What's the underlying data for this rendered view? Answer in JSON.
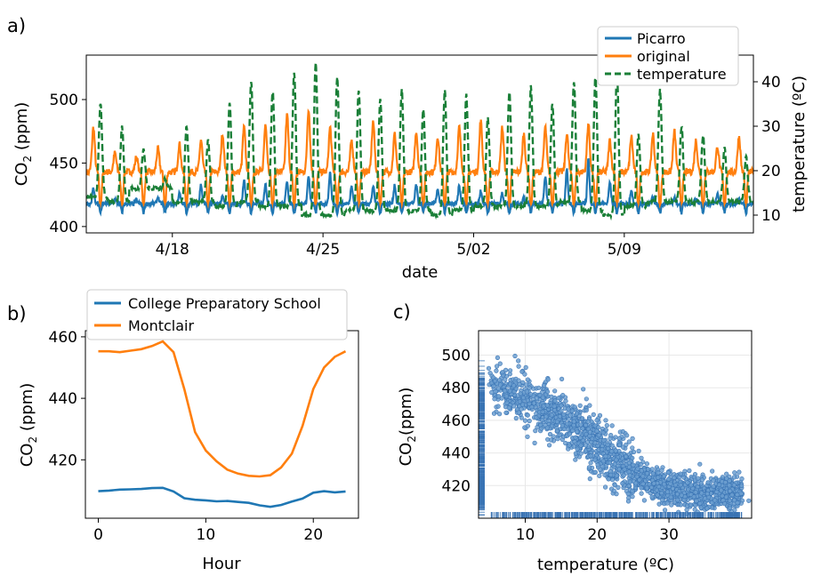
{
  "panels": {
    "a": {
      "label": "a)"
    },
    "b": {
      "label": "b)"
    },
    "c": {
      "label": "c)"
    }
  },
  "colors": {
    "picarro": "#1f77b4",
    "original": "#ff7f0e",
    "temperature": "#1a7f37",
    "scatter_fill": "#6c9fd0",
    "scatter_edge": "#3a74b4"
  },
  "chart_data": [
    {
      "type": "line",
      "panel": "a",
      "xlabel": "date",
      "ylabel_prefix": "CO",
      "ylabel_sub": "2",
      "ylabel_suffix": " (ppm)",
      "y2label": "temperature (ºC)",
      "x_range_days": [
        "4/14",
        "5/15"
      ],
      "x_ticks": [
        "4/18",
        "4/25",
        "5/02",
        "5/09"
      ],
      "ylim": [
        395,
        535
      ],
      "yticks": [
        400,
        450,
        500
      ],
      "y2lim": [
        6,
        46
      ],
      "y2ticks": [
        10,
        20,
        30,
        40
      ],
      "legend_position": "top-right",
      "series": [
        {
          "name": "Picarro",
          "axis": "left",
          "style": "solid",
          "baseline": 418,
          "peak_amplitudes": [
            12,
            4,
            3,
            5,
            8,
            15,
            5,
            18,
            15,
            18,
            22,
            24,
            15,
            14,
            15,
            15,
            12,
            14,
            10,
            8,
            5,
            22,
            27,
            35,
            17,
            10,
            5,
            5,
            4,
            8,
            5
          ],
          "range": [
            408,
            476
          ]
        },
        {
          "name": "original",
          "axis": "left",
          "style": "solid",
          "baseline": 443,
          "peak_amplitudes": [
            35,
            15,
            12,
            18,
            22,
            25,
            30,
            35,
            38,
            45,
            50,
            35,
            25,
            40,
            30,
            32,
            28,
            35,
            40,
            35,
            30,
            35,
            30,
            38,
            25,
            28,
            30,
            32,
            25,
            20,
            28
          ],
          "trough": 412,
          "range": [
            407,
            496
          ]
        },
        {
          "name": "temperature",
          "axis": "right",
          "style": "dashed",
          "daily_max_c": [
            35,
            30,
            25,
            18,
            30,
            27,
            35,
            40,
            38,
            42,
            44,
            41,
            38,
            36,
            38,
            34,
            38,
            37,
            32,
            38,
            39,
            35,
            40,
            41,
            42,
            28,
            38,
            30,
            28,
            25,
            23
          ],
          "daily_min_c": [
            14,
            13,
            16,
            16,
            13,
            13,
            12,
            13,
            12,
            12,
            10,
            10,
            11,
            11,
            11,
            11,
            10,
            11,
            12,
            12,
            12,
            12,
            13,
            11,
            10,
            12,
            13,
            13,
            13,
            13,
            13
          ],
          "range": [
            9,
            44
          ]
        }
      ]
    },
    {
      "type": "line",
      "panel": "b",
      "xlabel": "Hour",
      "ylabel_prefix": "CO",
      "ylabel_sub": "2",
      "ylabel_suffix": " (ppm)",
      "xlim": [
        -1.2,
        24.2
      ],
      "xticks": [
        0,
        10,
        20
      ],
      "ylim": [
        401,
        462
      ],
      "yticks": [
        420,
        440,
        460
      ],
      "legend_position": "top",
      "x": [
        0,
        1,
        2,
        3,
        4,
        5,
        6,
        7,
        8,
        9,
        10,
        11,
        12,
        13,
        14,
        15,
        16,
        17,
        18,
        19,
        20,
        21,
        22,
        23
      ],
      "series": [
        {
          "name": "College Preparatory School",
          "values": [
            409.8,
            410.0,
            410.3,
            410.4,
            410.5,
            410.8,
            410.9,
            409.7,
            407.5,
            407.0,
            406.8,
            406.5,
            406.6,
            406.3,
            406.0,
            405.2,
            404.7,
            405.3,
            406.4,
            407.4,
            409.3,
            409.8,
            409.4,
            409.7
          ]
        },
        {
          "name": "Montclair",
          "values": [
            455.3,
            455.3,
            455.0,
            455.5,
            456.0,
            457.0,
            458.5,
            455.0,
            443.0,
            429.0,
            423.0,
            419.5,
            416.8,
            415.5,
            414.8,
            414.6,
            415.0,
            417.5,
            422.0,
            431.0,
            443.0,
            450.0,
            453.5,
            455.3
          ]
        }
      ]
    },
    {
      "type": "scatter",
      "panel": "c",
      "xlabel": "temperature (ºC)",
      "ylabel_prefix": "CO",
      "ylabel_sub": "2",
      "ylabel_suffix": "(ppm)",
      "xlim": [
        3.5,
        41.5
      ],
      "xticks": [
        10,
        20,
        30
      ],
      "ylim": [
        400,
        515
      ],
      "yticks": [
        420,
        440,
        460,
        480,
        500
      ],
      "grid": true,
      "rug": true,
      "trend": {
        "description_points": [
          [
            5,
            481
          ],
          [
            10,
            472
          ],
          [
            15,
            462
          ],
          [
            20,
            443
          ],
          [
            25,
            427
          ],
          [
            30,
            418
          ],
          [
            35,
            415
          ],
          [
            40,
            416
          ]
        ]
      }
    }
  ]
}
